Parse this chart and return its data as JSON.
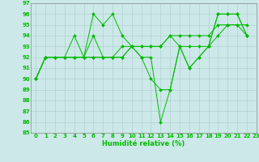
{
  "xlabel": "Humidité relative (%)",
  "background_color": "#cce8e8",
  "grid_color": "#aacccc",
  "line_color": "#00bb00",
  "ylim": [
    85,
    97
  ],
  "xlim": [
    -0.5,
    22.5
  ],
  "yticks": [
    85,
    86,
    87,
    88,
    89,
    90,
    91,
    92,
    93,
    94,
    95,
    96,
    97
  ],
  "xticks": [
    0,
    1,
    2,
    3,
    4,
    5,
    6,
    7,
    8,
    9,
    10,
    11,
    12,
    13,
    14,
    15,
    16,
    17,
    18,
    19,
    20,
    21,
    22,
    23
  ],
  "series": [
    [
      90,
      92,
      92,
      92,
      94,
      92,
      96,
      95,
      96,
      94,
      93,
      92,
      90,
      89,
      89,
      93,
      91,
      92,
      93,
      96,
      96,
      96,
      94
    ],
    [
      90,
      92,
      92,
      92,
      92,
      92,
      94,
      92,
      92,
      93,
      93,
      92,
      92,
      86,
      89,
      93,
      91,
      92,
      93,
      96,
      96,
      96,
      94
    ],
    [
      90,
      92,
      92,
      92,
      92,
      92,
      92,
      92,
      92,
      92,
      93,
      93,
      93,
      93,
      94,
      93,
      93,
      93,
      93,
      94,
      95,
      95,
      95
    ],
    [
      90,
      92,
      92,
      92,
      92,
      92,
      92,
      92,
      92,
      92,
      93,
      93,
      93,
      93,
      94,
      94,
      94,
      94,
      94,
      95,
      95,
      95,
      94
    ]
  ],
  "tick_fontsize": 5.0,
  "xlabel_fontsize": 6.0,
  "linewidth": 0.7,
  "markersize": 2.0
}
